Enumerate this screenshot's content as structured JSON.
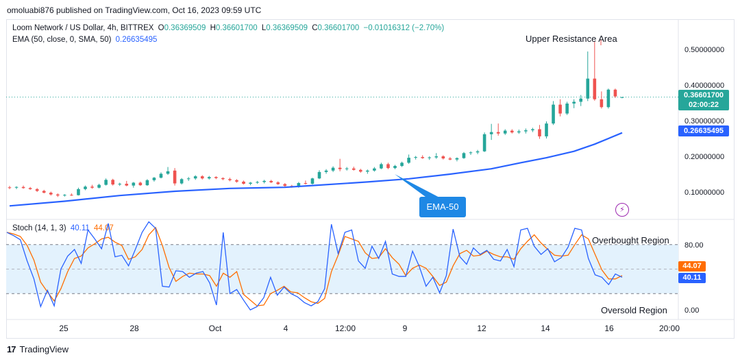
{
  "header": {
    "published": "omoluabi876 published on TradingView.com, Oct 16, 2023 09:59 UTC"
  },
  "legend": {
    "symbol": "Loom Network / US Dollar, 4h, BITTREX",
    "o_label": "O",
    "o_value": "0.36369509",
    "h_label": "H",
    "h_value": "0.36601700",
    "l_label": "L",
    "l_value": "0.36369509",
    "c_label": "C",
    "c_value": "0.36601700",
    "change": "−0.01016312 (−2.70%)",
    "ema_label": "EMA (50, close, 0, SMA, 50)",
    "ema_value": "0.26635495"
  },
  "stoch_legend": {
    "label": "Stoch (14, 1, 3)",
    "k_value": "40.11",
    "d_value": "44.07"
  },
  "price_tags": {
    "last_price": "0.36601700",
    "countdown": "02:00:22",
    "ema": "0.26635495",
    "stoch_d": "44.07",
    "stoch_k": "40.11"
  },
  "annotations": {
    "upper_resistance": "Upper Resistance Area",
    "ema_callout": "EMA-50",
    "overbought": "Overbought Region",
    "oversold": "Oversold Region"
  },
  "footer": {
    "brand": "TradingView",
    "brand_mark": "17"
  },
  "colors": {
    "up": "#26a69a",
    "down": "#ef5350",
    "ema": "#2962ff",
    "stoch_k": "#2962ff",
    "stoch_d": "#ff6d00",
    "stoch_band": "#e3f2fd",
    "price_tag": "#26a69a",
    "ema_tag": "#2962ff"
  },
  "chart_data": [
    {
      "type": "candlestick",
      "title": "Loom Network / US Dollar, 4h, BITTREX",
      "y_ticks": [
        "0.50000000",
        "0.40000000",
        "0.30000000",
        "0.20000000",
        "0.10000000"
      ],
      "x_ticks": [
        "25",
        "28",
        "Oct",
        "4",
        "12:00",
        "9",
        "12",
        "14",
        "16",
        "20:00"
      ],
      "ylim": [
        0.03,
        0.55
      ],
      "last_price": 0.366017,
      "candles": [
        {
          "i": 0,
          "o": 0.113,
          "h": 0.117,
          "l": 0.108,
          "c": 0.112
        },
        {
          "i": 1,
          "o": 0.112,
          "h": 0.116,
          "l": 0.108,
          "c": 0.114
        },
        {
          "i": 2,
          "o": 0.114,
          "h": 0.118,
          "l": 0.109,
          "c": 0.111
        },
        {
          "i": 3,
          "o": 0.111,
          "h": 0.114,
          "l": 0.106,
          "c": 0.108
        },
        {
          "i": 4,
          "o": 0.108,
          "h": 0.111,
          "l": 0.1,
          "c": 0.103
        },
        {
          "i": 5,
          "o": 0.103,
          "h": 0.106,
          "l": 0.096,
          "c": 0.098
        },
        {
          "i": 6,
          "o": 0.098,
          "h": 0.101,
          "l": 0.09,
          "c": 0.093
        },
        {
          "i": 7,
          "o": 0.093,
          "h": 0.096,
          "l": 0.086,
          "c": 0.09
        },
        {
          "i": 8,
          "o": 0.09,
          "h": 0.094,
          "l": 0.087,
          "c": 0.092
        },
        {
          "i": 9,
          "o": 0.092,
          "h": 0.096,
          "l": 0.089,
          "c": 0.091
        },
        {
          "i": 10,
          "o": 0.091,
          "h": 0.112,
          "l": 0.09,
          "c": 0.108
        },
        {
          "i": 11,
          "o": 0.108,
          "h": 0.118,
          "l": 0.105,
          "c": 0.115
        },
        {
          "i": 12,
          "o": 0.115,
          "h": 0.12,
          "l": 0.109,
          "c": 0.112
        },
        {
          "i": 13,
          "o": 0.112,
          "h": 0.123,
          "l": 0.11,
          "c": 0.12
        },
        {
          "i": 14,
          "o": 0.12,
          "h": 0.138,
          "l": 0.118,
          "c": 0.134
        },
        {
          "i": 15,
          "o": 0.134,
          "h": 0.137,
          "l": 0.118,
          "c": 0.121
        },
        {
          "i": 16,
          "o": 0.121,
          "h": 0.126,
          "l": 0.117,
          "c": 0.123
        },
        {
          "i": 17,
          "o": 0.123,
          "h": 0.131,
          "l": 0.116,
          "c": 0.118
        },
        {
          "i": 18,
          "o": 0.118,
          "h": 0.128,
          "l": 0.112,
          "c": 0.126
        },
        {
          "i": 19,
          "o": 0.126,
          "h": 0.129,
          "l": 0.117,
          "c": 0.119
        },
        {
          "i": 20,
          "o": 0.119,
          "h": 0.136,
          "l": 0.117,
          "c": 0.133
        },
        {
          "i": 21,
          "o": 0.133,
          "h": 0.142,
          "l": 0.129,
          "c": 0.14
        },
        {
          "i": 22,
          "o": 0.14,
          "h": 0.155,
          "l": 0.138,
          "c": 0.151
        },
        {
          "i": 23,
          "o": 0.151,
          "h": 0.17,
          "l": 0.148,
          "c": 0.158
        },
        {
          "i": 24,
          "o": 0.16,
          "h": 0.167,
          "l": 0.118,
          "c": 0.124
        },
        {
          "i": 25,
          "o": 0.124,
          "h": 0.139,
          "l": 0.121,
          "c": 0.136
        },
        {
          "i": 26,
          "o": 0.136,
          "h": 0.142,
          "l": 0.131,
          "c": 0.138
        },
        {
          "i": 27,
          "o": 0.138,
          "h": 0.147,
          "l": 0.134,
          "c": 0.144
        },
        {
          "i": 28,
          "o": 0.144,
          "h": 0.147,
          "l": 0.135,
          "c": 0.138
        },
        {
          "i": 29,
          "o": 0.138,
          "h": 0.145,
          "l": 0.135,
          "c": 0.142
        },
        {
          "i": 30,
          "o": 0.142,
          "h": 0.144,
          "l": 0.136,
          "c": 0.139
        },
        {
          "i": 31,
          "o": 0.139,
          "h": 0.141,
          "l": 0.133,
          "c": 0.136
        },
        {
          "i": 32,
          "o": 0.136,
          "h": 0.14,
          "l": 0.13,
          "c": 0.133
        },
        {
          "i": 33,
          "o": 0.133,
          "h": 0.136,
          "l": 0.126,
          "c": 0.129
        },
        {
          "i": 34,
          "o": 0.129,
          "h": 0.132,
          "l": 0.121,
          "c": 0.123
        },
        {
          "i": 35,
          "o": 0.123,
          "h": 0.128,
          "l": 0.119,
          "c": 0.126
        },
        {
          "i": 36,
          "o": 0.126,
          "h": 0.131,
          "l": 0.123,
          "c": 0.128
        },
        {
          "i": 37,
          "o": 0.128,
          "h": 0.134,
          "l": 0.124,
          "c": 0.131
        },
        {
          "i": 38,
          "o": 0.131,
          "h": 0.134,
          "l": 0.125,
          "c": 0.127
        },
        {
          "i": 39,
          "o": 0.127,
          "h": 0.13,
          "l": 0.12,
          "c": 0.122
        },
        {
          "i": 40,
          "o": 0.122,
          "h": 0.125,
          "l": 0.114,
          "c": 0.117
        },
        {
          "i": 41,
          "o": 0.117,
          "h": 0.12,
          "l": 0.112,
          "c": 0.114
        },
        {
          "i": 42,
          "o": 0.114,
          "h": 0.128,
          "l": 0.112,
          "c": 0.125
        },
        {
          "i": 43,
          "o": 0.125,
          "h": 0.132,
          "l": 0.121,
          "c": 0.123
        },
        {
          "i": 44,
          "o": 0.123,
          "h": 0.14,
          "l": 0.121,
          "c": 0.138
        },
        {
          "i": 45,
          "o": 0.138,
          "h": 0.161,
          "l": 0.136,
          "c": 0.156
        },
        {
          "i": 46,
          "o": 0.156,
          "h": 0.164,
          "l": 0.151,
          "c": 0.16
        },
        {
          "i": 47,
          "o": 0.16,
          "h": 0.172,
          "l": 0.156,
          "c": 0.168
        },
        {
          "i": 48,
          "o": 0.168,
          "h": 0.193,
          "l": 0.158,
          "c": 0.164
        },
        {
          "i": 49,
          "o": 0.164,
          "h": 0.17,
          "l": 0.16,
          "c": 0.166
        },
        {
          "i": 50,
          "o": 0.166,
          "h": 0.171,
          "l": 0.16,
          "c": 0.162
        },
        {
          "i": 51,
          "o": 0.162,
          "h": 0.165,
          "l": 0.154,
          "c": 0.157
        },
        {
          "i": 52,
          "o": 0.157,
          "h": 0.163,
          "l": 0.151,
          "c": 0.16
        },
        {
          "i": 53,
          "o": 0.16,
          "h": 0.17,
          "l": 0.157,
          "c": 0.166
        },
        {
          "i": 54,
          "o": 0.166,
          "h": 0.182,
          "l": 0.164,
          "c": 0.178
        },
        {
          "i": 55,
          "o": 0.178,
          "h": 0.182,
          "l": 0.164,
          "c": 0.167
        },
        {
          "i": 56,
          "o": 0.167,
          "h": 0.176,
          "l": 0.164,
          "c": 0.173
        },
        {
          "i": 57,
          "o": 0.173,
          "h": 0.185,
          "l": 0.17,
          "c": 0.182
        },
        {
          "i": 58,
          "o": 0.182,
          "h": 0.205,
          "l": 0.179,
          "c": 0.196
        },
        {
          "i": 59,
          "o": 0.196,
          "h": 0.201,
          "l": 0.191,
          "c": 0.198
        },
        {
          "i": 60,
          "o": 0.198,
          "h": 0.203,
          "l": 0.193,
          "c": 0.195
        },
        {
          "i": 61,
          "o": 0.195,
          "h": 0.2,
          "l": 0.19,
          "c": 0.197
        },
        {
          "i": 62,
          "o": 0.197,
          "h": 0.209,
          "l": 0.193,
          "c": 0.2
        },
        {
          "i": 63,
          "o": 0.2,
          "h": 0.203,
          "l": 0.191,
          "c": 0.194
        },
        {
          "i": 64,
          "o": 0.194,
          "h": 0.198,
          "l": 0.189,
          "c": 0.191
        },
        {
          "i": 65,
          "o": 0.191,
          "h": 0.197,
          "l": 0.186,
          "c": 0.195
        },
        {
          "i": 66,
          "o": 0.195,
          "h": 0.212,
          "l": 0.193,
          "c": 0.209
        },
        {
          "i": 67,
          "o": 0.209,
          "h": 0.214,
          "l": 0.204,
          "c": 0.211
        },
        {
          "i": 68,
          "o": 0.211,
          "h": 0.218,
          "l": 0.206,
          "c": 0.214
        },
        {
          "i": 69,
          "o": 0.214,
          "h": 0.267,
          "l": 0.212,
          "c": 0.262
        },
        {
          "i": 70,
          "o": 0.262,
          "h": 0.291,
          "l": 0.246,
          "c": 0.268
        },
        {
          "i": 71,
          "o": 0.268,
          "h": 0.292,
          "l": 0.258,
          "c": 0.264
        },
        {
          "i": 72,
          "o": 0.264,
          "h": 0.276,
          "l": 0.26,
          "c": 0.272
        },
        {
          "i": 73,
          "o": 0.272,
          "h": 0.276,
          "l": 0.264,
          "c": 0.267
        },
        {
          "i": 74,
          "o": 0.267,
          "h": 0.275,
          "l": 0.263,
          "c": 0.27
        },
        {
          "i": 75,
          "o": 0.27,
          "h": 0.278,
          "l": 0.264,
          "c": 0.273
        },
        {
          "i": 76,
          "o": 0.273,
          "h": 0.28,
          "l": 0.268,
          "c": 0.276
        },
        {
          "i": 77,
          "o": 0.276,
          "h": 0.288,
          "l": 0.249,
          "c": 0.256
        },
        {
          "i": 78,
          "o": 0.256,
          "h": 0.298,
          "l": 0.25,
          "c": 0.292
        },
        {
          "i": 79,
          "o": 0.292,
          "h": 0.355,
          "l": 0.288,
          "c": 0.345
        },
        {
          "i": 80,
          "o": 0.345,
          "h": 0.36,
          "l": 0.312,
          "c": 0.32
        },
        {
          "i": 81,
          "o": 0.32,
          "h": 0.353,
          "l": 0.316,
          "c": 0.348
        },
        {
          "i": 82,
          "o": 0.348,
          "h": 0.36,
          "l": 0.335,
          "c": 0.353
        },
        {
          "i": 83,
          "o": 0.353,
          "h": 0.372,
          "l": 0.341,
          "c": 0.362
        },
        {
          "i": 84,
          "o": 0.362,
          "h": 0.494,
          "l": 0.355,
          "c": 0.418
        },
        {
          "i": 85,
          "o": 0.418,
          "h": 0.521,
          "l": 0.356,
          "c": 0.36
        },
        {
          "i": 86,
          "o": 0.36,
          "h": 0.382,
          "l": 0.334,
          "c": 0.338
        },
        {
          "i": 87,
          "o": 0.338,
          "h": 0.39,
          "l": 0.334,
          "c": 0.387
        },
        {
          "i": 88,
          "o": 0.387,
          "h": 0.39,
          "l": 0.364,
          "c": 0.368
        },
        {
          "i": 89,
          "o": 0.364,
          "h": 0.367,
          "l": 0.363,
          "c": 0.366
        }
      ],
      "ema_series": [
        [
          0,
          0.061
        ],
        [
          8,
          0.074
        ],
        [
          16,
          0.09
        ],
        [
          24,
          0.102
        ],
        [
          32,
          0.11
        ],
        [
          40,
          0.113
        ],
        [
          44,
          0.118
        ],
        [
          52,
          0.128
        ],
        [
          58,
          0.137
        ],
        [
          64,
          0.15
        ],
        [
          70,
          0.165
        ],
        [
          74,
          0.181
        ],
        [
          78,
          0.196
        ],
        [
          82,
          0.214
        ],
        [
          85,
          0.234
        ],
        [
          89,
          0.266
        ]
      ],
      "series": [
        {
          "name": "EMA (50, close, 0, SMA, 50)"
        }
      ]
    },
    {
      "type": "line",
      "title": "Stoch (14, 1, 3)",
      "y_ticks": [
        "80.00",
        "0.00"
      ],
      "ylim": [
        -5,
        110
      ],
      "levels": [
        80,
        20
      ],
      "series": [
        {
          "name": "%K",
          "value": 40.11,
          "values": [
            95,
            91,
            86,
            60,
            38,
            4,
            24,
            5,
            50,
            66,
            74,
            57,
            98,
            87,
            75,
            106,
            65,
            67,
            54,
            74,
            95,
            108,
            100,
            29,
            28,
            48,
            47,
            40,
            45,
            47,
            33,
            6,
            95,
            20,
            25,
            12,
            0,
            4,
            15,
            40,
            18,
            28,
            20,
            16,
            9,
            5,
            10,
            26,
            105,
            69,
            95,
            98,
            60,
            51,
            78,
            63,
            84,
            44,
            41,
            41,
            72,
            53,
            29,
            40,
            21,
            42,
            99,
            65,
            56,
            76,
            68,
            73,
            62,
            60,
            74,
            53,
            98,
            100,
            78,
            68,
            75,
            59,
            64,
            77,
            100,
            98,
            63,
            43,
            40,
            31,
            44,
            40
          ]
        },
        {
          "name": "%D",
          "value": 44.07,
          "values": [
            95,
            93,
            90,
            79,
            61,
            34,
            22,
            11,
            26,
            47,
            63,
            66,
            76,
            81,
            87,
            89,
            83,
            79,
            62,
            65,
            74,
            92,
            101,
            79,
            52,
            35,
            41,
            45,
            44,
            44,
            42,
            29,
            45,
            40,
            47,
            19,
            12,
            5,
            6,
            20,
            24,
            29,
            22,
            21,
            15,
            10,
            8,
            14,
            47,
            67,
            90,
            87,
            84,
            70,
            63,
            64,
            75,
            64,
            56,
            42,
            51,
            55,
            51,
            41,
            30,
            34,
            54,
            69,
            73,
            66,
            67,
            72,
            68,
            65,
            65,
            62,
            75,
            84,
            92,
            82,
            74,
            67,
            66,
            67,
            80,
            92,
            87,
            68,
            49,
            38,
            38,
            42
          ]
        }
      ]
    }
  ]
}
